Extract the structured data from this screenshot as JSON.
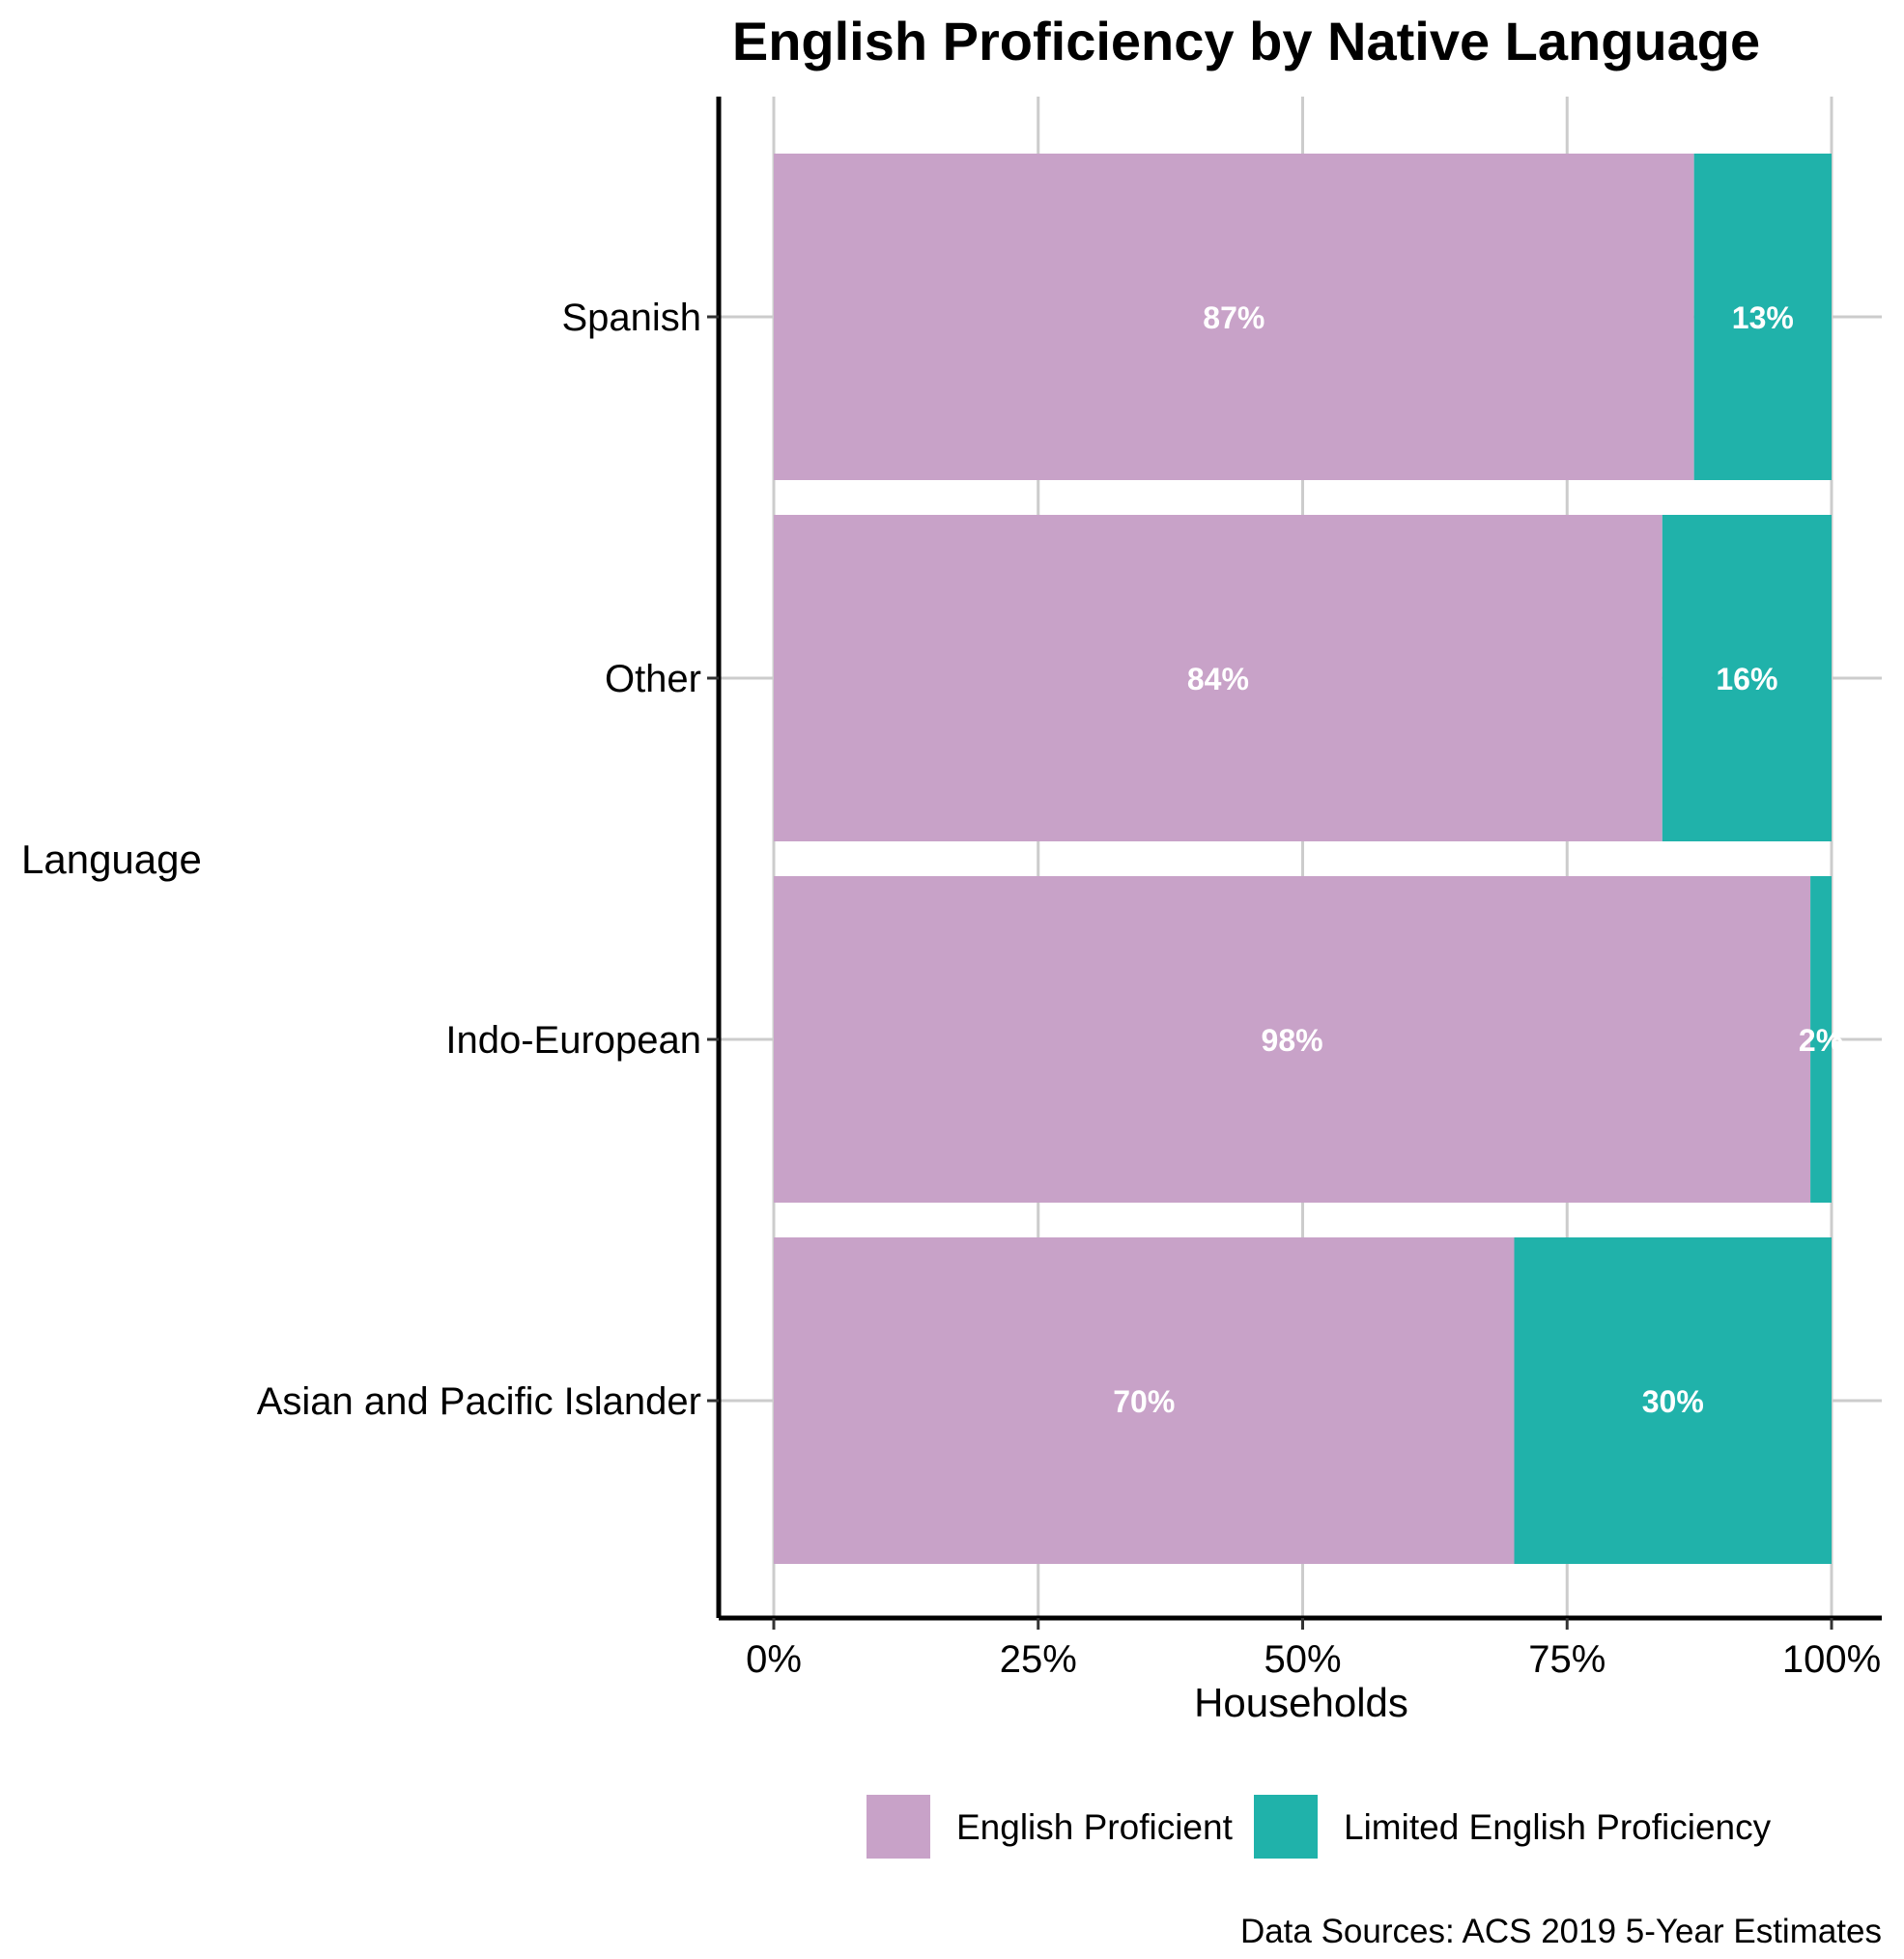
{
  "chart_data": {
    "type": "bar",
    "orientation": "horizontal",
    "stacked": true,
    "title": "English Proficiency by Native Language",
    "xlabel": "Households",
    "ylabel": "Language",
    "caption": "Data Sources: ACS 2019 5-Year Estimates",
    "categories": [
      "Spanish",
      "Other",
      "Indo-European",
      "Asian and Pacific Islander"
    ],
    "series": [
      {
        "name": "English Proficient",
        "color": "#C8A2C8",
        "values": [
          87,
          84,
          98,
          70
        ],
        "labels": [
          "87%",
          "84%",
          "98%",
          "70%"
        ]
      },
      {
        "name": "Limited English Proficiency",
        "color": "#20B2AA",
        "values": [
          13,
          16,
          2,
          30
        ],
        "labels": [
          "13%",
          "16%",
          "2%",
          "30%"
        ]
      }
    ],
    "xlim": [
      0,
      100
    ],
    "xticks": [
      0,
      25,
      50,
      75,
      100
    ],
    "xtick_labels": [
      "0%",
      "25%",
      "50%",
      "75%",
      "100%"
    ],
    "grid": true,
    "legend_position": "bottom"
  }
}
